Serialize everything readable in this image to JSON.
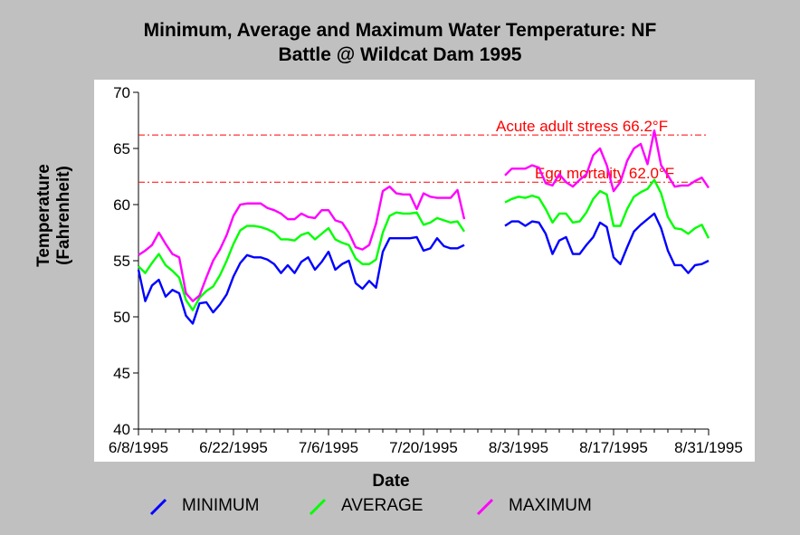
{
  "chart_data": {
    "type": "line",
    "title_lines": [
      "Minimum, Average and Maximum Water Temperature: NF",
      "Battle @ Wildcat Dam 1995"
    ],
    "xlabel": "Date",
    "ylabel_lines": [
      "Temperature",
      "(Fahrenheit)"
    ],
    "ylim": [
      40,
      70
    ],
    "yticks": [
      40,
      45,
      50,
      55,
      60,
      65,
      70
    ],
    "xticks": [
      "6/8/1995",
      "6/22/1995",
      "7/6/1995",
      "7/20/1995",
      "8/3/1995",
      "8/17/1995",
      "8/31/1995"
    ],
    "x_start_date": "6/8/1995",
    "x_end_date": "8/31/1995",
    "grid": false,
    "legend_position": "bottom",
    "reference_lines": [
      {
        "label": "Acute adult stress 66.2°F",
        "value": 66.2,
        "color": "#ff0000"
      },
      {
        "label": "Egg mortality 62.0°F",
        "value": 62.0,
        "color": "#ff0000"
      }
    ],
    "series": [
      {
        "name": "MINIMUM",
        "color": "#0000ff",
        "segments": [
          [
            54.2,
            51.4,
            52.8,
            53.3,
            51.8,
            52.4,
            52.1,
            50.1,
            49.4,
            51.2,
            51.3,
            50.4,
            51.1,
            52.0,
            53.6,
            54.8,
            55.5,
            55.3,
            55.3,
            55.1,
            54.7,
            53.9,
            54.6,
            53.9,
            54.9,
            55.3,
            54.2,
            54.9,
            55.8,
            54.2,
            54.7,
            55.0,
            53.0,
            52.5,
            53.2,
            52.6,
            55.8,
            57.0,
            57.0,
            57.0,
            57.0,
            57.1,
            55.9,
            56.1,
            57.0,
            56.3,
            56.1,
            56.1,
            56.4
          ],
          [
            58.1,
            58.5,
            58.5,
            58.1,
            58.5,
            58.4,
            57.4,
            55.6,
            56.8,
            57.1,
            55.6,
            55.6,
            56.4,
            57.1,
            58.4,
            58.0,
            55.3,
            54.7,
            56.2,
            57.6,
            58.2,
            58.7,
            59.2,
            57.9,
            55.9,
            54.6,
            54.6,
            53.9,
            54.6,
            54.7,
            55.0
          ]
        ]
      },
      {
        "name": "AVERAGE",
        "color": "#00ff00",
        "segments": [
          [
            54.5,
            53.9,
            54.8,
            55.6,
            54.6,
            54.1,
            53.5,
            51.5,
            50.6,
            51.7,
            52.3,
            52.7,
            53.7,
            55.0,
            56.5,
            57.7,
            58.1,
            58.1,
            58.0,
            57.8,
            57.5,
            56.9,
            56.9,
            56.8,
            57.3,
            57.5,
            56.9,
            57.4,
            57.9,
            56.9,
            56.6,
            56.4,
            55.2,
            54.7,
            54.7,
            55.1,
            57.5,
            59.0,
            59.3,
            59.2,
            59.2,
            59.3,
            58.2,
            58.4,
            58.8,
            58.6,
            58.4,
            58.5,
            57.6
          ],
          [
            60.2,
            60.5,
            60.7,
            60.6,
            60.8,
            60.6,
            59.6,
            58.4,
            59.2,
            59.2,
            58.4,
            58.5,
            59.3,
            60.5,
            61.2,
            60.9,
            58.1,
            58.1,
            59.6,
            60.7,
            61.1,
            61.4,
            62.2,
            61.0,
            58.9,
            57.9,
            57.8,
            57.4,
            57.9,
            58.2,
            57.0
          ]
        ]
      },
      {
        "name": "MAXIMUM",
        "color": "#ff00ff",
        "segments": [
          [
            55.5,
            55.9,
            56.4,
            57.5,
            56.5,
            55.6,
            55.3,
            52.1,
            51.4,
            51.9,
            53.5,
            55.0,
            56.0,
            57.3,
            59.0,
            60.0,
            60.1,
            60.1,
            60.1,
            59.7,
            59.5,
            59.2,
            58.7,
            58.7,
            59.2,
            58.9,
            58.8,
            59.5,
            59.5,
            58.6,
            58.4,
            57.5,
            56.2,
            56.0,
            56.4,
            58.3,
            61.2,
            61.6,
            61.0,
            60.9,
            60.9,
            59.6,
            61.0,
            60.7,
            60.6,
            60.6,
            60.6,
            61.3,
            58.7
          ],
          [
            62.6,
            63.2,
            63.2,
            63.2,
            63.5,
            63.3,
            61.9,
            61.7,
            62.7,
            62.0,
            61.6,
            62.2,
            62.7,
            64.4,
            65.0,
            63.5,
            61.2,
            62.0,
            63.9,
            65.0,
            65.4,
            63.6,
            66.6,
            63.5,
            62.6,
            61.6,
            61.7,
            61.7,
            62.1,
            62.4,
            61.5
          ]
        ]
      }
    ]
  }
}
